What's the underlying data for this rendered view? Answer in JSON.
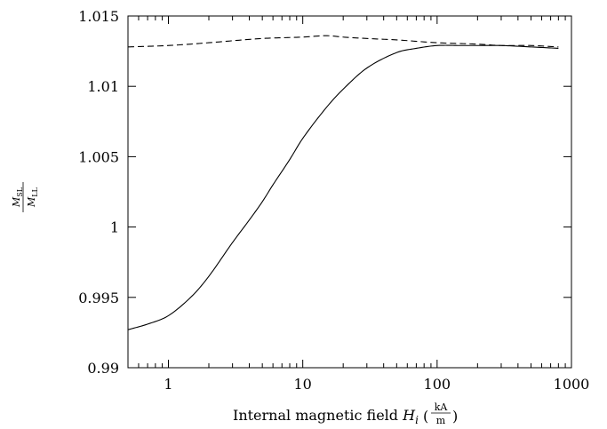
{
  "chart_data": {
    "type": "line",
    "xlabel": {
      "text": "Internal magnetic field ",
      "var": "H",
      "sub": "i",
      "frac_num": "kA",
      "frac_den": "m"
    },
    "ylabel": {
      "num_var": "M",
      "num_sub": "SL",
      "den_var": "M",
      "den_sub": "LL"
    },
    "xscale": "log",
    "xlim": [
      0.5,
      1000
    ],
    "ylim": [
      0.99,
      1.015
    ],
    "xticks": [
      {
        "value": 1,
        "label": "1"
      },
      {
        "value": 10,
        "label": "10"
      },
      {
        "value": 100,
        "label": "100"
      },
      {
        "value": 1000,
        "label": "1000"
      }
    ],
    "yticks": [
      {
        "value": 0.99,
        "label": "0.99"
      },
      {
        "value": 0.995,
        "label": "0.995"
      },
      {
        "value": 1.0,
        "label": "1"
      },
      {
        "value": 1.005,
        "label": "1.005"
      },
      {
        "value": 1.01,
        "label": "1.01"
      },
      {
        "value": 1.015,
        "label": "1.015"
      }
    ],
    "grid": false,
    "legend": "none",
    "series": [
      {
        "style": "solid",
        "color": "#000000",
        "x": [
          0.5,
          0.7,
          1,
          1.5,
          2,
          3,
          4,
          5,
          6,
          8,
          10,
          15,
          20,
          30,
          50,
          70,
          100,
          150,
          200,
          300,
          500,
          800
        ],
        "y": [
          0.9927,
          0.9931,
          0.9937,
          0.9951,
          0.9965,
          0.9989,
          1.0005,
          1.0018,
          1.003,
          1.0048,
          1.0063,
          1.0085,
          1.0098,
          1.0113,
          1.0124,
          1.0127,
          1.0129,
          1.0129,
          1.0129,
          1.0129,
          1.0128,
          1.0127
        ]
      },
      {
        "style": "dashed",
        "color": "#000000",
        "x": [
          0.5,
          1,
          2,
          5,
          10,
          15,
          20,
          30,
          50,
          100,
          200,
          300,
          500,
          800
        ],
        "y": [
          1.0128,
          1.0129,
          1.0131,
          1.0134,
          1.0135,
          1.0136,
          1.0135,
          1.0134,
          1.0133,
          1.0131,
          1.013,
          1.0129,
          1.0129,
          1.0128
        ]
      }
    ]
  }
}
